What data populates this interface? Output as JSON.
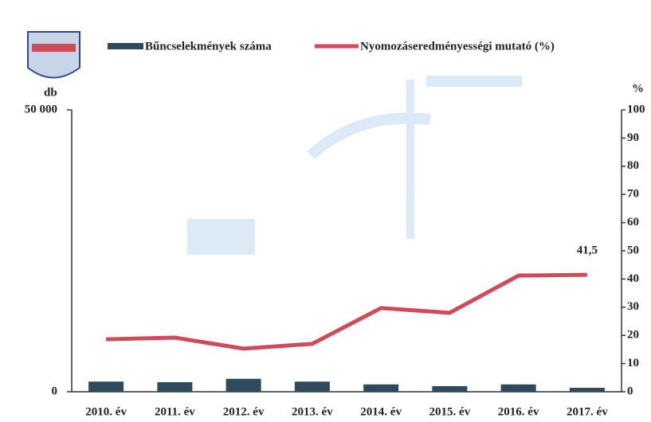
{
  "chart_data": {
    "type": "bar-line",
    "categories": [
      "2010. év",
      "2011. év",
      "2012. év",
      "2013. év",
      "2014. év",
      "2015. év",
      "2016. év",
      "2017. év"
    ],
    "series": [
      {
        "name": "Bűncselekmények száma",
        "type": "bar",
        "color": "#2e4a5c",
        "values": [
          1800,
          1700,
          2300,
          1800,
          1300,
          1000,
          1300,
          700
        ]
      },
      {
        "name": "Nyomozáseredményességi mutató (%)",
        "type": "line",
        "axis": "y2",
        "color": "#d04a5a",
        "values": [
          18.6,
          19.2,
          15.3,
          17,
          29.7,
          28,
          41.2,
          41.5
        ],
        "value_labels": [
          null,
          null,
          null,
          null,
          null,
          null,
          null,
          "41,5"
        ]
      }
    ],
    "ylabel": "db",
    "y2label": "%",
    "ylim": [
      0,
      50000
    ],
    "yticks": [
      0,
      {
        "value": 50000,
        "label": "50 000"
      }
    ],
    "y2lim": [
      0,
      100
    ],
    "y2ticks": [
      0,
      10,
      20,
      30,
      40,
      50,
      60,
      70,
      80,
      90,
      100
    ]
  }
}
